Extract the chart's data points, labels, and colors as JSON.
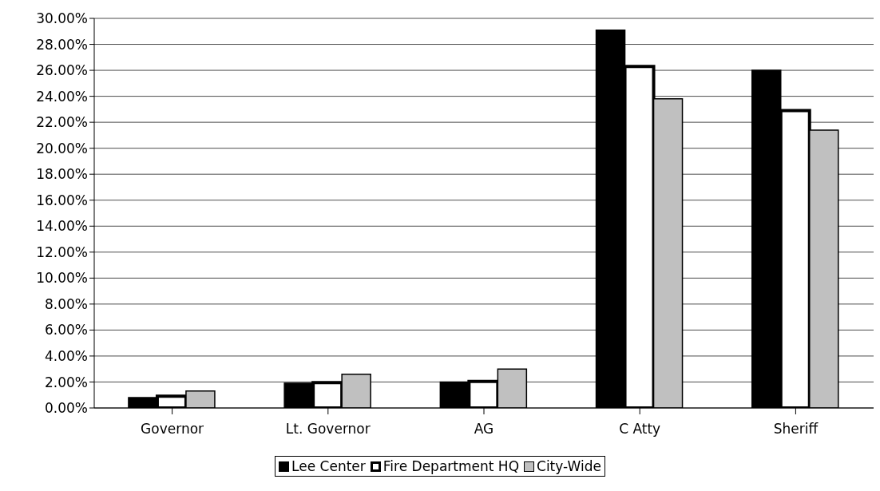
{
  "chart_data": {
    "type": "bar",
    "categories": [
      "Governor",
      "Lt. Governor",
      "AG",
      "C Atty",
      "Sheriff"
    ],
    "series": [
      {
        "name": "Lee Center",
        "color": "#000000",
        "values": [
          0.8,
          1.9,
          2.0,
          29.1,
          26.0
        ]
      },
      {
        "name": "Fire Department HQ",
        "color": "#ffffff",
        "values": [
          0.9,
          1.95,
          2.05,
          26.3,
          22.9
        ]
      },
      {
        "name": "City-Wide",
        "color": "#c0c0c0",
        "values": [
          1.3,
          2.6,
          3.0,
          23.8,
          21.4
        ]
      }
    ],
    "ylim": [
      0,
      30
    ],
    "yticks": [
      {
        "value": 0,
        "label": "0.00%"
      },
      {
        "value": 2,
        "label": "2.00%"
      },
      {
        "value": 4,
        "label": "4.00%"
      },
      {
        "value": 6,
        "label": "6.00%"
      },
      {
        "value": 8,
        "label": "8.00%"
      },
      {
        "value": 10,
        "label": "10.00%"
      },
      {
        "value": 12,
        "label": "12.00%"
      },
      {
        "value": 14,
        "label": "14.00%"
      },
      {
        "value": 16,
        "label": "16.00%"
      },
      {
        "value": 18,
        "label": "18.00%"
      },
      {
        "value": 20,
        "label": "20.00%"
      },
      {
        "value": 22,
        "label": "22.00%"
      },
      {
        "value": 24,
        "label": "24.00%"
      },
      {
        "value": 26,
        "label": "26.00%"
      },
      {
        "value": 28,
        "label": "28.00%"
      },
      {
        "value": 30,
        "label": "30.00%"
      }
    ],
    "grid": "y",
    "legend": "bottom"
  }
}
